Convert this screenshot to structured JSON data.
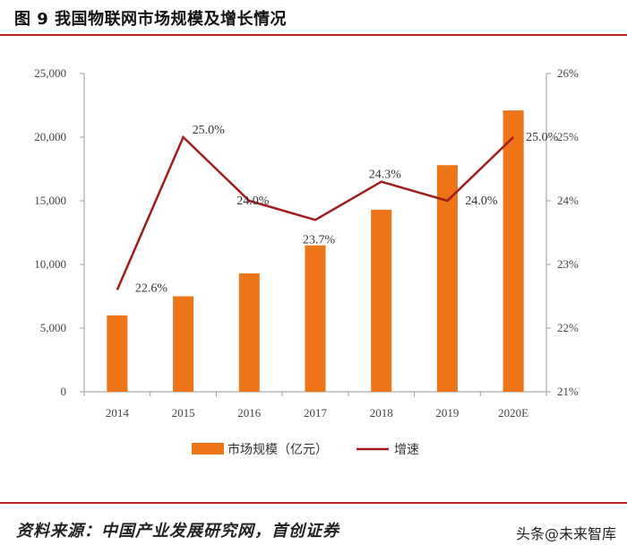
{
  "figure": {
    "title": "图 9 我国物联网市场规模及增长情况"
  },
  "source_note": "资料来源：中国产业发展研究网，首创证券",
  "watermark": "头条@未来智库",
  "colors": {
    "bar": "#ee7418",
    "line": "#a01c1c",
    "rule": "#b22222",
    "axis": "#999999"
  },
  "chart_data": {
    "type": "bar",
    "categories": [
      "2014",
      "2015",
      "2016",
      "2017",
      "2018",
      "2019",
      "2020E"
    ],
    "series": [
      {
        "name": "市场规模（亿元）",
        "type": "bar",
        "axis": "left",
        "values": [
          6000,
          7500,
          9300,
          11500,
          14300,
          17800,
          22100
        ]
      },
      {
        "name": "增速",
        "type": "line",
        "axis": "right",
        "values": [
          22.6,
          25.0,
          24.0,
          23.7,
          24.3,
          24.0,
          25.0
        ],
        "labels": [
          "22.6%",
          "25.0%",
          "24.0%",
          "23.7%",
          "24.3%",
          "24.0%",
          "25.0%"
        ]
      }
    ],
    "y_left": {
      "min": 0,
      "max": 25000,
      "ticks": [
        0,
        5000,
        10000,
        15000,
        20000,
        25000
      ],
      "tick_labels": [
        "0",
        "5,000",
        "10,000",
        "15,000",
        "20,000",
        "25,000"
      ]
    },
    "y_right": {
      "min": 21,
      "max": 26,
      "ticks": [
        21,
        22,
        23,
        24,
        25,
        26
      ],
      "tick_labels": [
        "21%",
        "22%",
        "23%",
        "24%",
        "25%",
        "26%"
      ]
    },
    "legend": {
      "position": "bottom",
      "items": [
        "市场规模（亿元）",
        "增速"
      ]
    },
    "grid": false
  }
}
